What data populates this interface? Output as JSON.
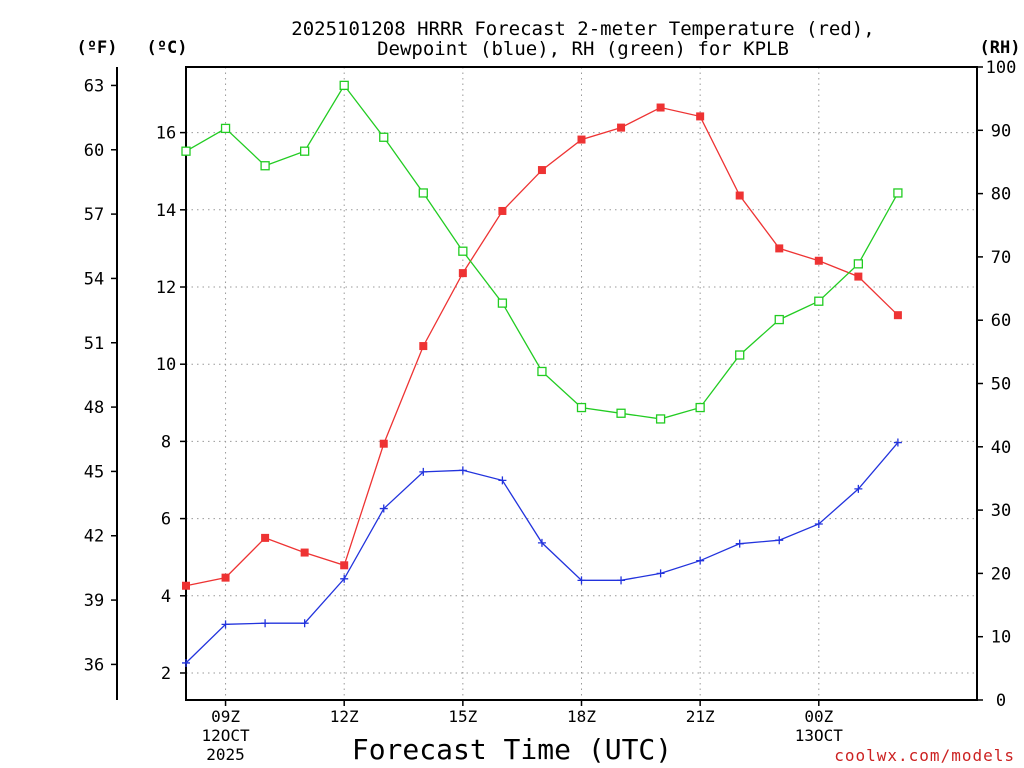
{
  "chart_data": {
    "type": "line",
    "title_line1": "2025101208 HRRR Forecast 2-meter Temperature (red),",
    "title_line2": "Dewpoint (blue), RH (green) for KPLB",
    "xlabel": "Forecast Time (UTC)",
    "credit": "coolwx.com/models",
    "unit_left_f": "(ºF)",
    "unit_left_c": "(ºC)",
    "unit_right_rh": "(RH)",
    "x_hours": [
      8,
      9,
      10,
      11,
      12,
      13,
      14,
      15,
      16,
      17,
      18,
      19,
      20,
      21,
      22,
      23,
      24,
      25,
      26,
      27,
      28
    ],
    "xlim": [
      8,
      28
    ],
    "x_ticks": [
      {
        "hour": 9,
        "lines": [
          "09Z",
          "12OCT",
          "2025"
        ]
      },
      {
        "hour": 12,
        "lines": [
          "12Z"
        ]
      },
      {
        "hour": 15,
        "lines": [
          "15Z"
        ]
      },
      {
        "hour": 18,
        "lines": [
          "18Z"
        ]
      },
      {
        "hour": 21,
        "lines": [
          "21Z"
        ]
      },
      {
        "hour": 24,
        "lines": [
          "00Z",
          "13OCT"
        ]
      }
    ],
    "celsius_axis": {
      "ylim": [
        1.3,
        17.7
      ],
      "ticks": [
        2,
        4,
        6,
        8,
        10,
        12,
        14,
        16
      ]
    },
    "fahrenheit_ticks": [
      36,
      39,
      42,
      45,
      48,
      51,
      54,
      57,
      60,
      63
    ],
    "rh_axis": {
      "ylim": [
        0,
        100
      ],
      "ticks": [
        0,
        10,
        20,
        30,
        40,
        50,
        60,
        70,
        80,
        90,
        100
      ]
    },
    "series": [
      {
        "name": "Temperature",
        "color": "#ee3333",
        "marker": "filled-square",
        "axis": "celsius",
        "values": [
          4.26,
          4.47,
          5.5,
          5.12,
          4.79,
          7.94,
          10.47,
          12.36,
          13.97,
          15.03,
          15.82,
          16.13,
          16.65,
          16.42,
          14.37,
          13.0,
          12.68,
          12.27,
          11.27,
          null,
          null
        ]
      },
      {
        "name": "Dewpoint",
        "color": "#2233dd",
        "marker": "plus",
        "axis": "celsius",
        "values": [
          2.26,
          3.26,
          3.29,
          3.29,
          4.44,
          6.26,
          7.21,
          7.25,
          6.99,
          5.37,
          4.4,
          4.4,
          4.58,
          4.91,
          5.35,
          5.44,
          5.86,
          6.77,
          7.97,
          null,
          null
        ]
      },
      {
        "name": "RH",
        "color": "#22cc22",
        "marker": "open-square",
        "axis": "rh",
        "values": [
          86.7,
          90.3,
          84.4,
          86.7,
          97.1,
          88.9,
          80.1,
          70.9,
          62.7,
          51.9,
          46.2,
          45.3,
          44.4,
          46.2,
          54.5,
          60.1,
          63.0,
          68.9,
          80.1,
          null,
          null
        ]
      }
    ]
  }
}
